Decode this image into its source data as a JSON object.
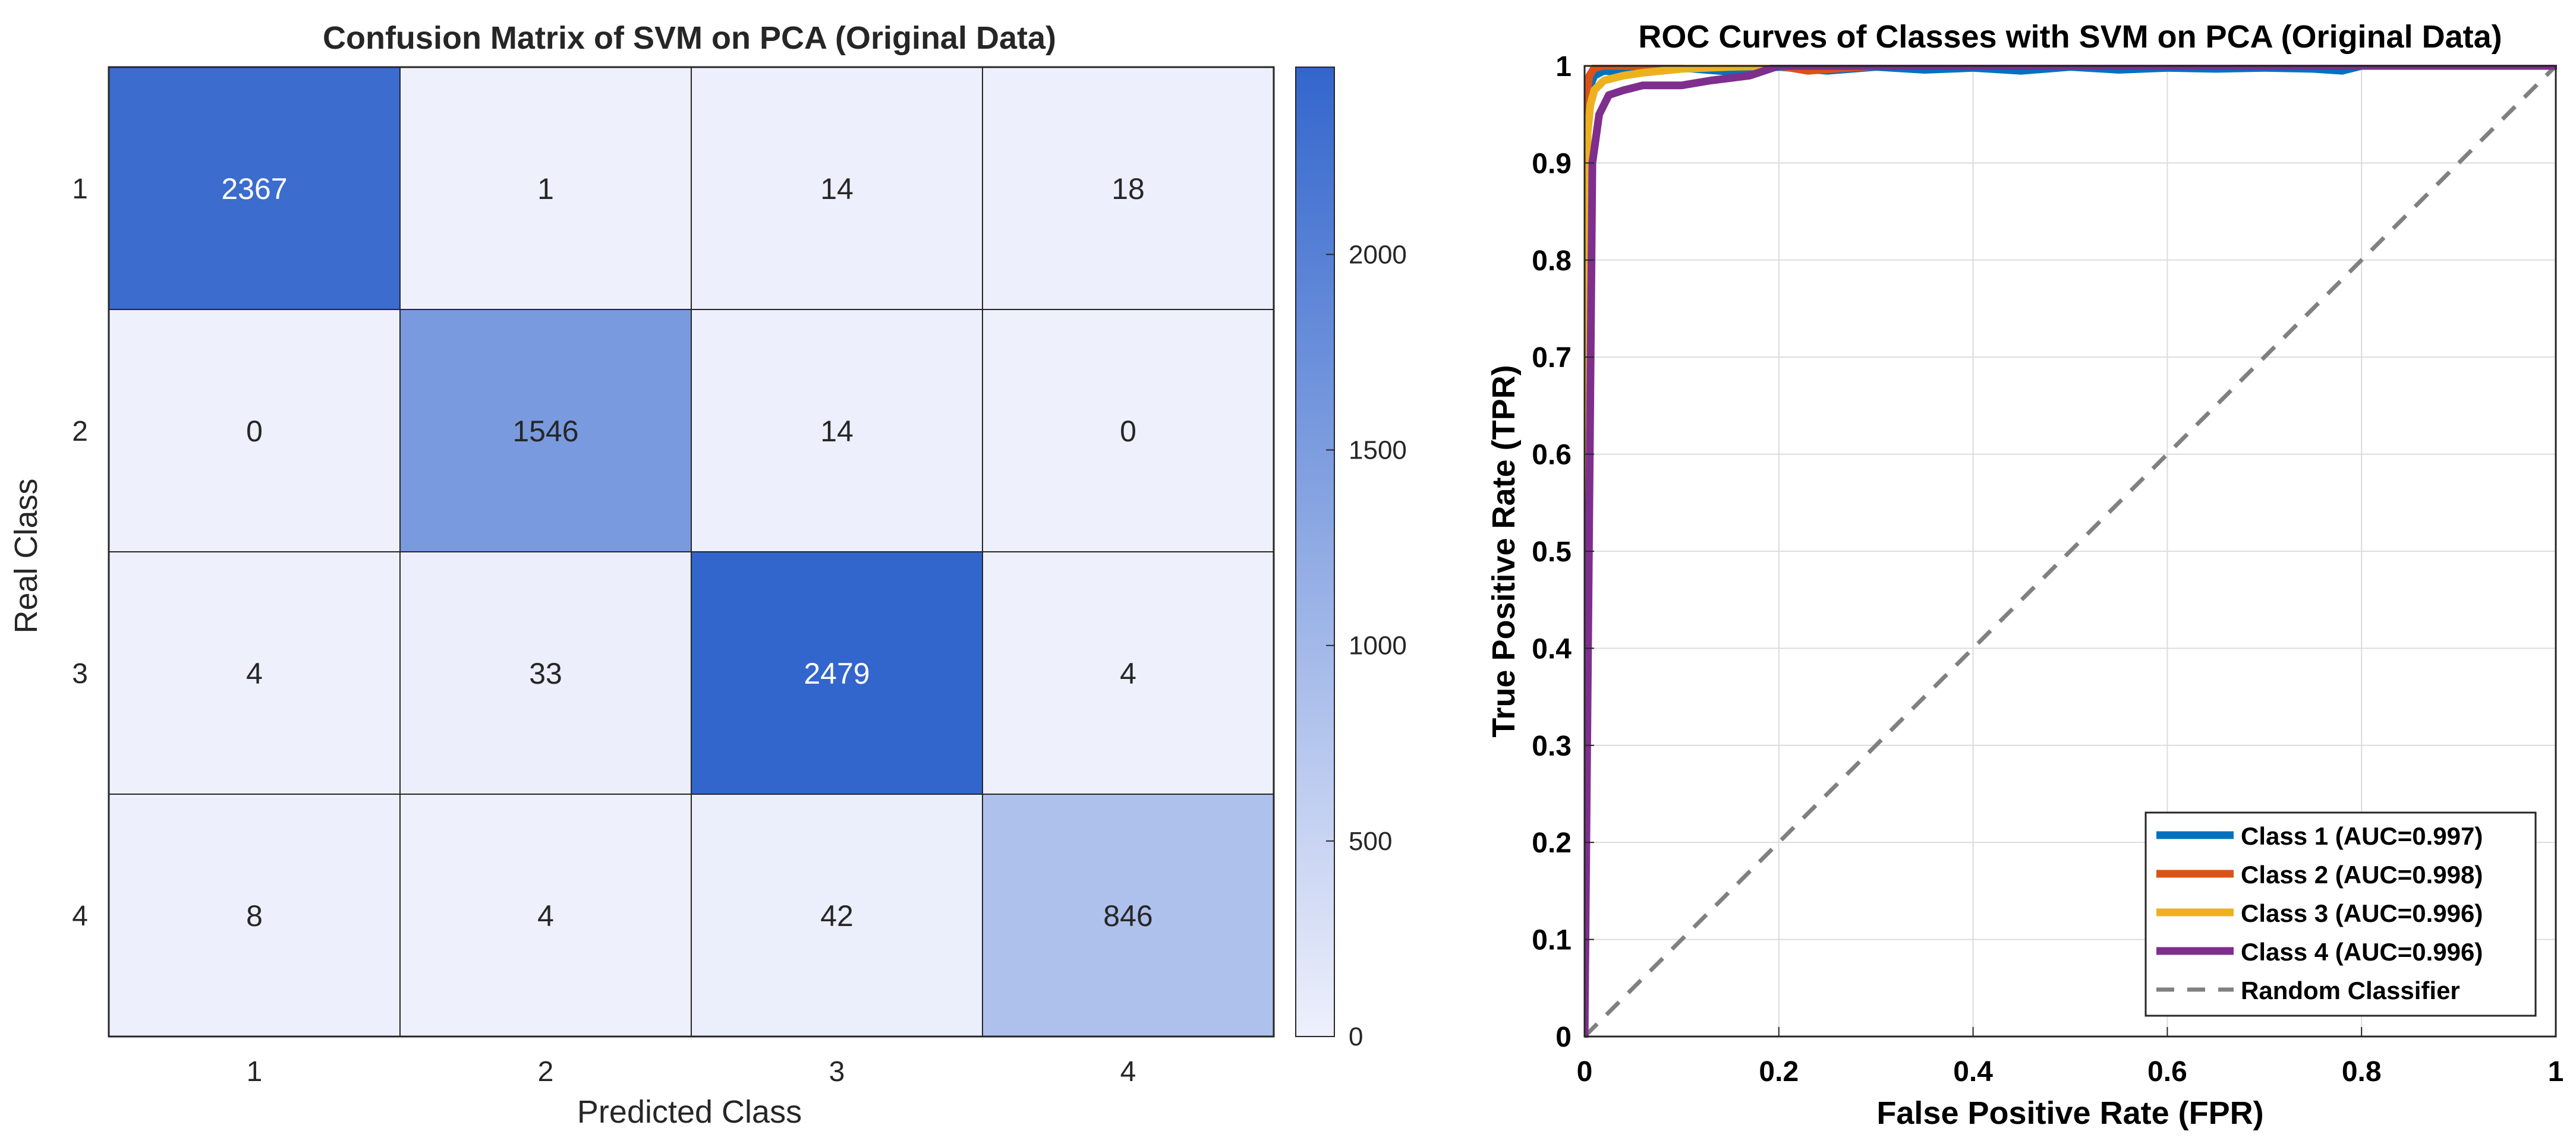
{
  "colors": {
    "cm_low": "#eef0fc",
    "cm_high": "#3366cc",
    "class_1": "#0072bd",
    "class_2": "#d95319",
    "class_3": "#edb120",
    "class_4": "#7e2f8e",
    "random": "#808080",
    "grid": "#dcdcdc"
  },
  "chart_data": [
    {
      "type": "heatmap",
      "title": "Confusion Matrix of SVM on PCA (Original Data)",
      "xlabel": "Predicted Class",
      "ylabel": "Real Class",
      "x_categories": [
        "1",
        "2",
        "3",
        "4"
      ],
      "y_categories": [
        "1",
        "2",
        "3",
        "4"
      ],
      "matrix": [
        [
          2367,
          1,
          14,
          18
        ],
        [
          0,
          1546,
          14,
          0
        ],
        [
          4,
          33,
          2479,
          4
        ],
        [
          8,
          4,
          42,
          846
        ]
      ],
      "colorbar": {
        "range": [
          0,
          2479
        ],
        "ticks": [
          0,
          500,
          1000,
          1500,
          2000
        ],
        "tick_labels": [
          "0",
          "500",
          "1000",
          "1500",
          "2000"
        ]
      }
    },
    {
      "type": "line",
      "title": "ROC Curves of Classes with SVM on PCA (Original Data)",
      "xlabel": "False Positive Rate (FPR)",
      "ylabel": "True Positive Rate (TPR)",
      "xlim": [
        0,
        1
      ],
      "ylim": [
        0,
        1
      ],
      "grid": true,
      "legend_position": "bottom-right",
      "x_ticks": [
        0,
        0.2,
        0.4,
        0.6,
        0.8,
        1
      ],
      "x_tick_labels": [
        "0",
        "0.2",
        "0.4",
        "0.6",
        "0.8",
        "1"
      ],
      "y_ticks": [
        0,
        0.1,
        0.2,
        0.3,
        0.4,
        0.5,
        0.6,
        0.7,
        0.8,
        0.9,
        1
      ],
      "y_tick_labels": [
        "0",
        "0.1",
        "0.2",
        "0.3",
        "0.4",
        "0.5",
        "0.6",
        "0.7",
        "0.8",
        "0.9",
        "1"
      ],
      "series": [
        {
          "name": "Class 1 (AUC=0.997)",
          "color_key": "class_1",
          "x": [
            0,
            0.003,
            0.006,
            0.01,
            0.02,
            0.05,
            0.1,
            0.15,
            0.2,
            0.25,
            0.3,
            0.35,
            0.4,
            0.45,
            0.5,
            0.55,
            0.6,
            0.65,
            0.7,
            0.75,
            0.78,
            0.8,
            1
          ],
          "y": [
            0,
            0.95,
            0.98,
            0.99,
            0.995,
            0.992,
            0.998,
            0.994,
            0.999,
            0.995,
            0.999,
            0.996,
            0.998,
            0.995,
            0.999,
            0.996,
            0.998,
            0.997,
            0.998,
            0.997,
            0.995,
            1,
            1
          ]
        },
        {
          "name": "Class 2 (AUC=0.998)",
          "color_key": "class_2",
          "x": [
            0,
            0.002,
            0.005,
            0.01,
            0.02,
            0.05,
            0.1,
            0.15,
            0.2,
            0.23,
            0.3,
            1
          ],
          "y": [
            0,
            0.97,
            0.99,
            0.998,
            1,
            1,
            1,
            1,
            1,
            0.995,
            1,
            1
          ]
        },
        {
          "name": "Class 3 (AUC=0.996)",
          "color_key": "class_3",
          "x": [
            0,
            0.003,
            0.006,
            0.01,
            0.02,
            0.04,
            0.06,
            0.08,
            0.1,
            0.15,
            0.2,
            0.3,
            1
          ],
          "y": [
            0,
            0.93,
            0.96,
            0.975,
            0.985,
            0.99,
            0.993,
            0.995,
            0.997,
            0.999,
            1,
            1,
            1
          ]
        },
        {
          "name": "Class 4 (AUC=0.996)",
          "color_key": "class_4",
          "x": [
            0,
            0.008,
            0.015,
            0.025,
            0.04,
            0.06,
            0.1,
            0.13,
            0.17,
            0.2,
            1
          ],
          "y": [
            0,
            0.9,
            0.95,
            0.97,
            0.975,
            0.98,
            0.98,
            0.985,
            0.99,
            1,
            1
          ]
        },
        {
          "name": "Random Classifier",
          "color_key": "random",
          "dashed": true,
          "x": [
            0,
            1
          ],
          "y": [
            0,
            1
          ]
        }
      ]
    }
  ]
}
